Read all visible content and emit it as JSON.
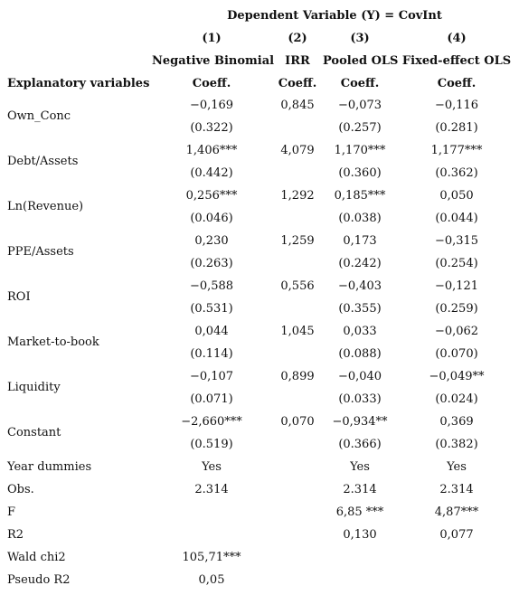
{
  "header": {
    "dependent_variable": "Dependent Variable (Y) = CovInt",
    "column_numbers": [
      "(1)",
      "(2)",
      "(3)",
      "(4)"
    ],
    "models": [
      "Negative Binomial",
      "IRR",
      "Pooled OLS",
      "Fixed-effect OLS"
    ],
    "row_header": "Explanatory variables",
    "coeff_labels": [
      "Coeff.",
      "Coeff.",
      "Coeff.",
      "Coeff."
    ]
  },
  "rows": [
    {
      "label": "Own_Conc",
      "coef": [
        "−0,169",
        "0,845",
        "−0,073",
        "−0,116"
      ],
      "se": [
        "(0.322)",
        "",
        "(0.257)",
        "(0.281)"
      ]
    },
    {
      "label": "Debt/Assets",
      "coef": [
        "1,406***",
        "4,079",
        "1,170***",
        "1,177***"
      ],
      "se": [
        "(0.442)",
        "",
        "(0.360)",
        "(0.362)"
      ]
    },
    {
      "label": "Ln(Revenue)",
      "coef": [
        "0,256***",
        "1,292",
        "0,185***",
        "0,050"
      ],
      "se": [
        "(0.046)",
        "",
        "(0.038)",
        "(0.044)"
      ]
    },
    {
      "label": "PPE/Assets",
      "coef": [
        "0,230",
        "1,259",
        "0,173",
        "−0,315"
      ],
      "se": [
        "(0.263)",
        "",
        "(0.242)",
        "(0.254)"
      ]
    },
    {
      "label": "ROI",
      "coef": [
        "−0,588",
        "0,556",
        "−0,403",
        "−0,121"
      ],
      "se": [
        "(0.531)",
        "",
        "(0.355)",
        "(0.259)"
      ]
    },
    {
      "label": "Market-to-book",
      "coef": [
        "0,044",
        "1,045",
        "0,033",
        "−0,062"
      ],
      "se": [
        "(0.114)",
        "",
        "(0.088)",
        "(0.070)"
      ]
    },
    {
      "label": "Liquidity",
      "coef": [
        "−0,107",
        "0,899",
        "−0,040",
        "−0,049**"
      ],
      "se": [
        "(0.071)",
        "",
        "(0.033)",
        "(0.024)"
      ]
    },
    {
      "label": "Constant",
      "coef": [
        "−2,660***",
        "0,070",
        "−0,934**",
        "0,369"
      ],
      "se": [
        "(0.519)",
        "",
        "(0.366)",
        "(0.382)"
      ]
    }
  ],
  "stats": [
    {
      "label": "Year dummies",
      "values": [
        "Yes",
        "",
        "Yes",
        "Yes"
      ]
    },
    {
      "label": "Obs.",
      "values": [
        "2.314",
        "",
        "2.314",
        "2.314"
      ]
    },
    {
      "label": "F",
      "values": [
        "",
        "",
        "6,85 ***",
        "4,87***"
      ]
    },
    {
      "label": "R2",
      "values": [
        "",
        "",
        "0,130",
        "0,077"
      ]
    },
    {
      "label": "Wald chi2",
      "values": [
        "105,71***",
        "",
        "",
        ""
      ]
    },
    {
      "label": "Pseudo R2",
      "values": [
        "0,05",
        "",
        "",
        ""
      ]
    }
  ]
}
